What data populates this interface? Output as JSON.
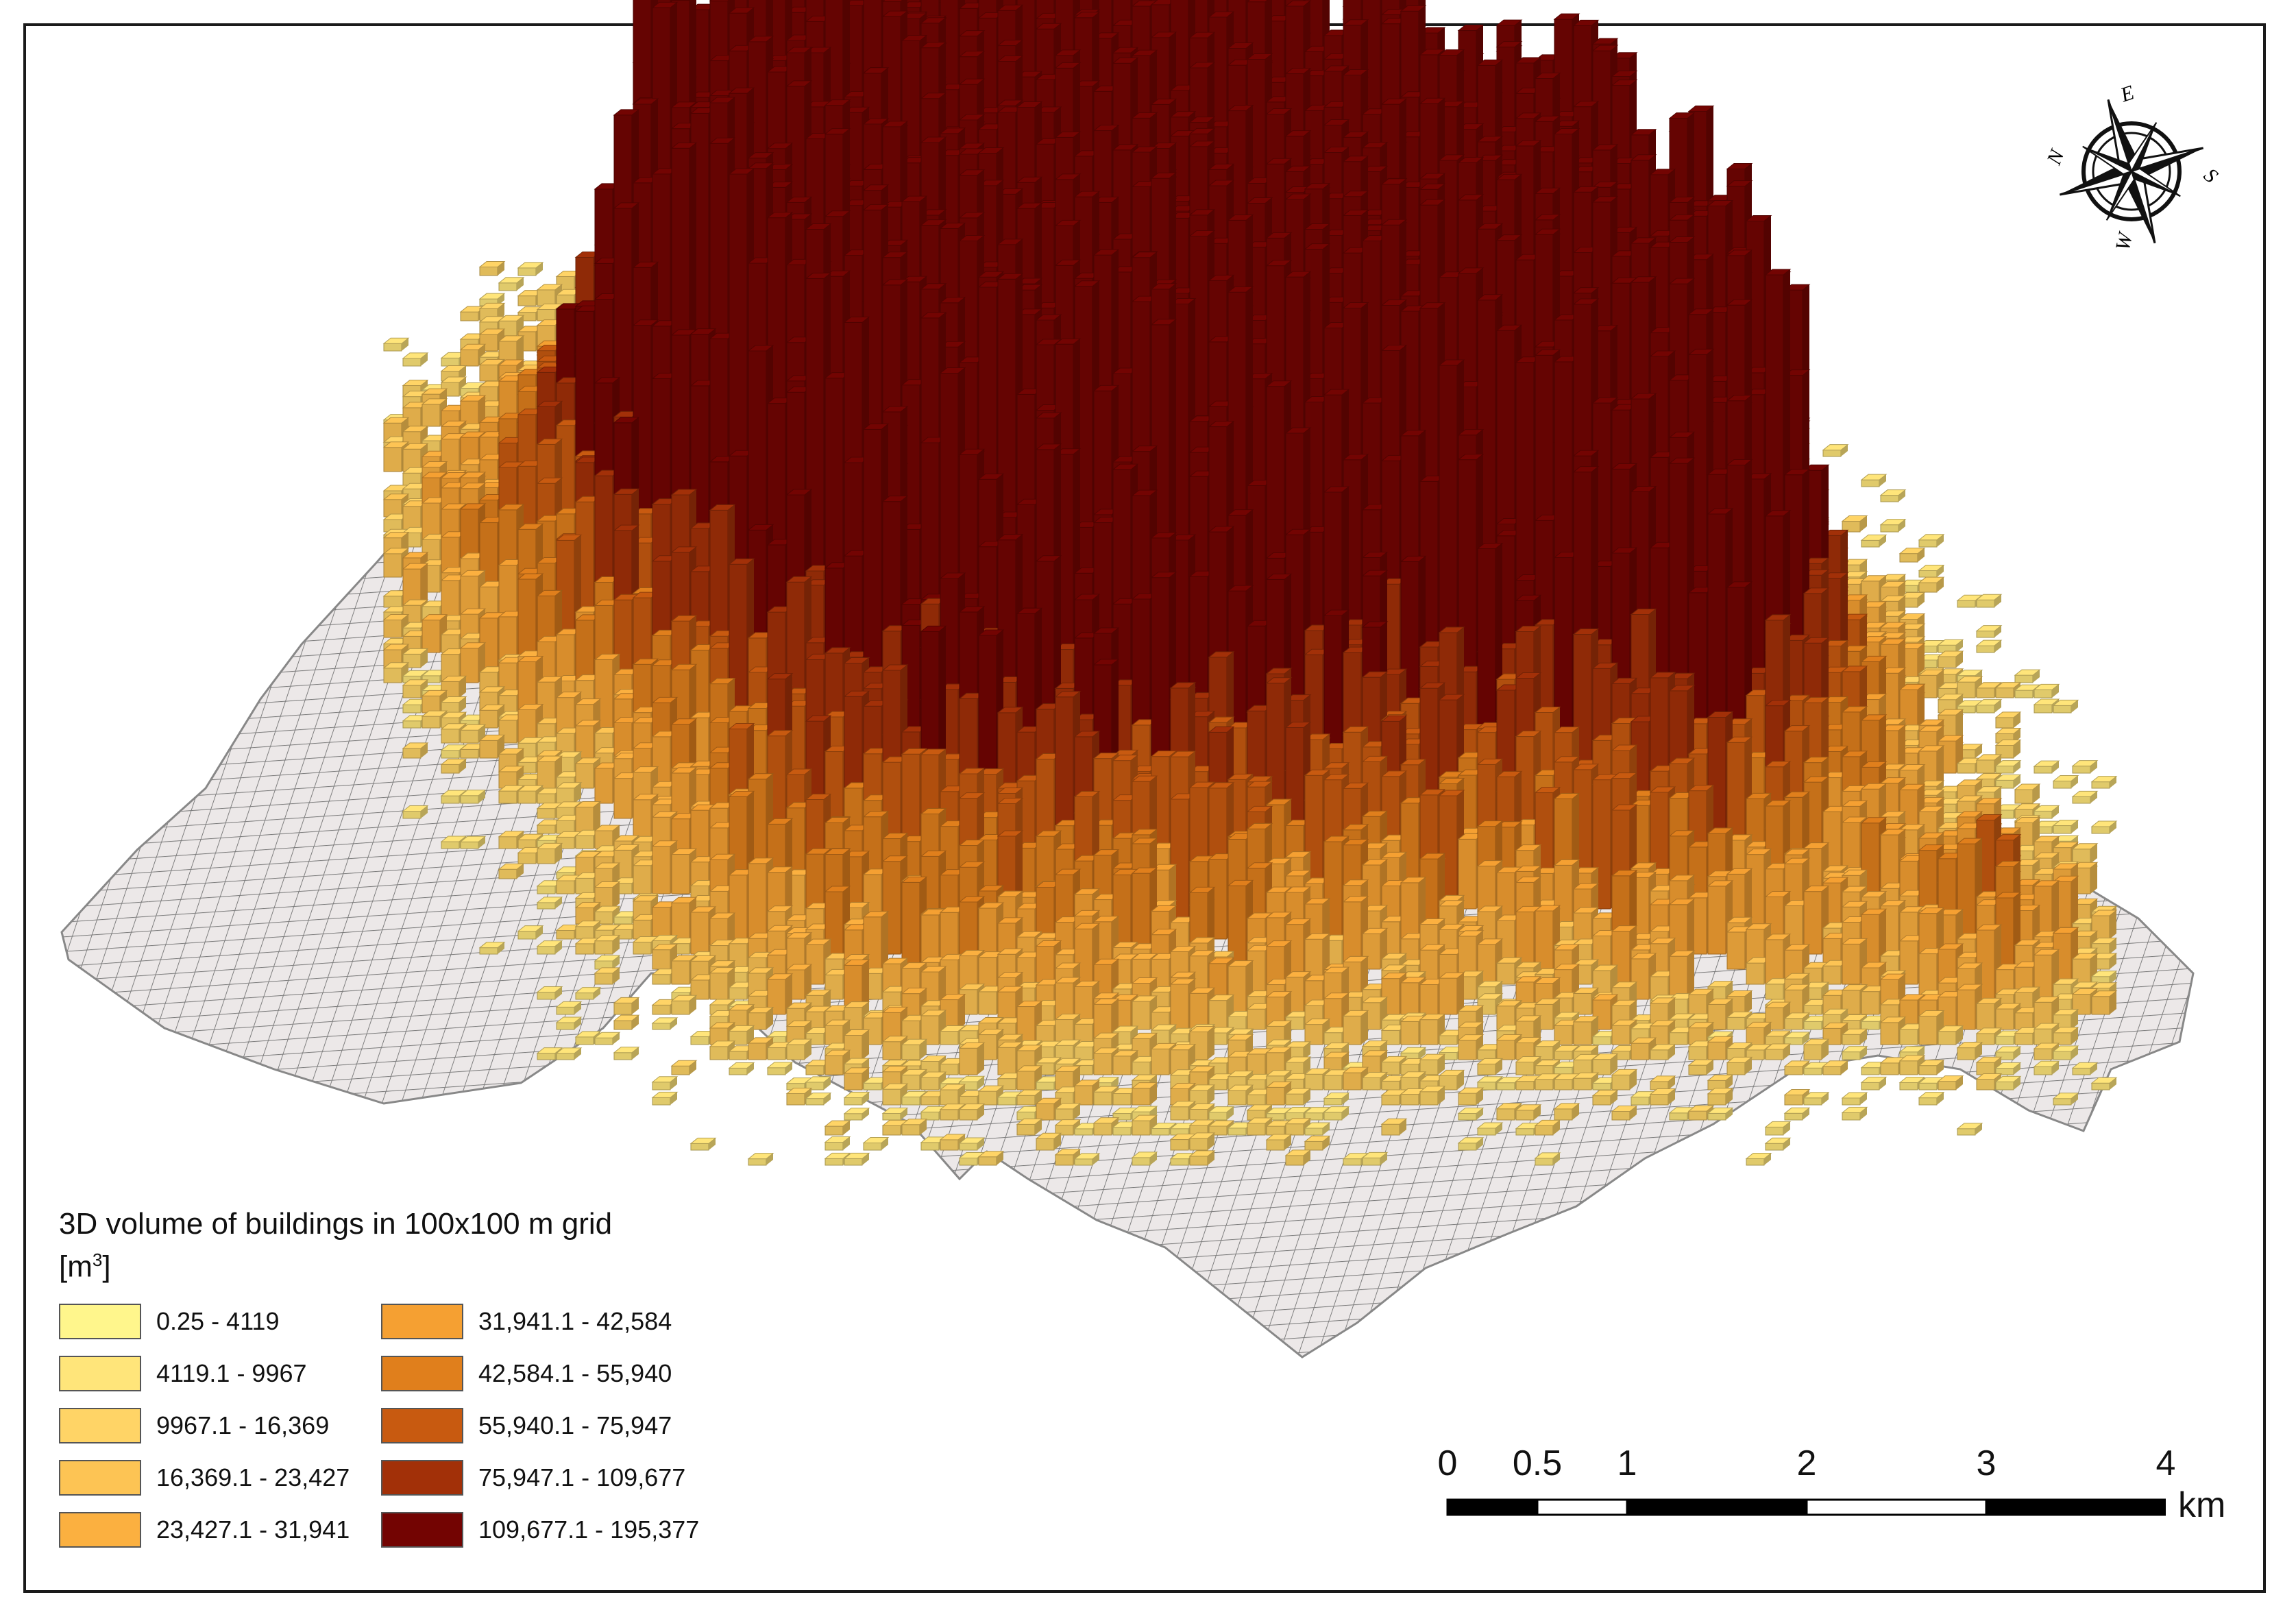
{
  "legend": {
    "title": "3D volume of buildings in 100x100 m grid",
    "unit": "[m",
    "unit_sup": "3",
    "unit_close": "]",
    "classes": [
      {
        "label": "0.25 - 4119",
        "color": "#FFF68C"
      },
      {
        "label": "4119.1 - 9967",
        "color": "#FFE57A"
      },
      {
        "label": "9967.1 - 16,369",
        "color": "#FFD466"
      },
      {
        "label": "16,369.1 - 23,427",
        "color": "#FDC454"
      },
      {
        "label": "23,427.1 - 31,941",
        "color": "#FBB040"
      },
      {
        "label": "31,941.1 - 42,584",
        "color": "#F5A032"
      },
      {
        "label": "42,584.1 - 55,940",
        "color": "#E07F1C"
      },
      {
        "label": "55,940.1 - 75,947",
        "color": "#C85A10"
      },
      {
        "label": "75,947.1 - 109,677",
        "color": "#A23008"
      },
      {
        "label": "109,677.1 - 195,377",
        "color": "#730402"
      }
    ]
  },
  "scale": {
    "ticks": [
      "0",
      "0.5",
      "1",
      "2",
      "3",
      "4"
    ],
    "tick_values_km": [
      0,
      0.5,
      1,
      2,
      3,
      4
    ],
    "unit": "km"
  },
  "compass": {
    "labels": [
      "N",
      "E",
      "S",
      "W"
    ]
  },
  "colors": {
    "grid_fill": "#ECE8E8",
    "grid_line": "#7A7A7A",
    "frame": "#1A1A1A"
  }
}
